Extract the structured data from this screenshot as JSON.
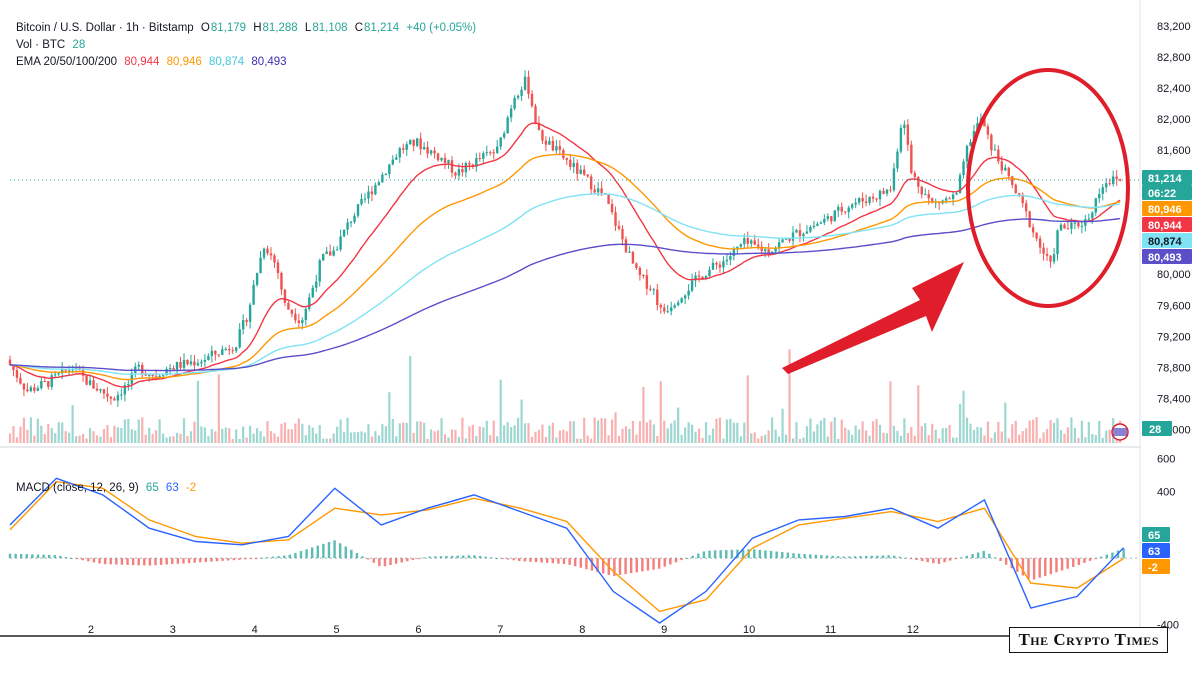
{
  "header": {
    "symbol": "Bitcoin / U.S. Dollar · 1h · Bitstamp",
    "open_label": "O",
    "open": "81,179",
    "high_label": "H",
    "high": "81,288",
    "low_label": "L",
    "low": "81,108",
    "close_label": "C",
    "close": "81,214",
    "change": "+40 (+0.05%)",
    "volume_label": "Vol · BTC",
    "volume": "28",
    "ema_label": "EMA 20/50/100/200",
    "ema20": "80,944",
    "ema50": "80,946",
    "ema100": "80,874",
    "ema200": "80,493",
    "macd_label": "MACD (close, 12, 26, 9)",
    "macd_hist": "65",
    "macd_line": "63",
    "macd_signal": "-2"
  },
  "colors": {
    "up": "#26a69a",
    "down": "#ef5350",
    "ema20": "#f23645",
    "ema50": "#ff9800",
    "ema100": "#7fe3f5",
    "ema200": "#5b4fc9",
    "macd": "#2962ff",
    "signal": "#ff9800",
    "annotation": "#e01e2b"
  },
  "chart_data": [
    {
      "type": "candlestick",
      "title": "Bitcoin / U.S. Dollar · 1h · Bitstamp",
      "ylim": [
        77800,
        83300
      ],
      "x_ticks": [
        "2",
        "3",
        "4",
        "5",
        "6",
        "7",
        "8",
        "9",
        "10",
        "11",
        "12"
      ],
      "y_ticks": [
        "83,200",
        "82,800",
        "82,400",
        "82,000",
        "81,600",
        "80,000",
        "79,600",
        "79,200",
        "78,800",
        "78,400",
        "78,000"
      ],
      "last_price": 81214,
      "countdown": "06:22",
      "price_path": [
        {
          "t": 0.0,
          "p": 78900
        },
        {
          "t": 0.25,
          "p": 78500
        },
        {
          "t": 0.5,
          "p": 78600
        },
        {
          "t": 0.8,
          "p": 78800
        },
        {
          "t": 1.0,
          "p": 78600
        },
        {
          "t": 1.3,
          "p": 78400
        },
        {
          "t": 1.5,
          "p": 78600
        },
        {
          "t": 1.6,
          "p": 78800
        },
        {
          "t": 1.8,
          "p": 78700
        },
        {
          "t": 2.0,
          "p": 78800
        },
        {
          "t": 2.4,
          "p": 78900
        },
        {
          "t": 2.6,
          "p": 79000
        },
        {
          "t": 2.8,
          "p": 79100
        },
        {
          "t": 2.95,
          "p": 79500
        },
        {
          "t": 3.05,
          "p": 80000
        },
        {
          "t": 3.15,
          "p": 80400
        },
        {
          "t": 3.3,
          "p": 80100
        },
        {
          "t": 3.4,
          "p": 79600
        },
        {
          "t": 3.6,
          "p": 79400
        },
        {
          "t": 3.7,
          "p": 79700
        },
        {
          "t": 3.85,
          "p": 80200
        },
        {
          "t": 4.0,
          "p": 80300
        },
        {
          "t": 4.2,
          "p": 80700
        },
        {
          "t": 4.4,
          "p": 81000
        },
        {
          "t": 4.6,
          "p": 81300
        },
        {
          "t": 4.8,
          "p": 81600
        },
        {
          "t": 5.0,
          "p": 81700
        },
        {
          "t": 5.3,
          "p": 81500
        },
        {
          "t": 5.5,
          "p": 81300
        },
        {
          "t": 5.8,
          "p": 81500
        },
        {
          "t": 6.0,
          "p": 81600
        },
        {
          "t": 6.2,
          "p": 82300
        },
        {
          "t": 6.35,
          "p": 82500
        },
        {
          "t": 6.5,
          "p": 81800
        },
        {
          "t": 6.7,
          "p": 81600
        },
        {
          "t": 7.0,
          "p": 81300
        },
        {
          "t": 7.3,
          "p": 81000
        },
        {
          "t": 7.5,
          "p": 80500
        },
        {
          "t": 7.7,
          "p": 80000
        },
        {
          "t": 7.9,
          "p": 79800
        },
        {
          "t": 8.0,
          "p": 79500
        },
        {
          "t": 8.2,
          "p": 79700
        },
        {
          "t": 8.5,
          "p": 80000
        },
        {
          "t": 8.8,
          "p": 80200
        },
        {
          "t": 9.0,
          "p": 80400
        },
        {
          "t": 9.3,
          "p": 80300
        },
        {
          "t": 9.6,
          "p": 80500
        },
        {
          "t": 10.0,
          "p": 80700
        },
        {
          "t": 10.3,
          "p": 80900
        },
        {
          "t": 10.6,
          "p": 81000
        },
        {
          "t": 10.8,
          "p": 81100
        },
        {
          "t": 10.95,
          "p": 82100
        },
        {
          "t": 11.05,
          "p": 81300
        },
        {
          "t": 11.3,
          "p": 80900
        },
        {
          "t": 11.6,
          "p": 81000
        },
        {
          "t": 11.75,
          "p": 81700
        },
        {
          "t": 11.9,
          "p": 82000
        },
        {
          "t": 12.0,
          "p": 81700
        },
        {
          "t": 12.2,
          "p": 81300
        },
        {
          "t": 12.4,
          "p": 80900
        },
        {
          "t": 12.6,
          "p": 80400
        },
        {
          "t": 12.75,
          "p": 80100
        },
        {
          "t": 12.85,
          "p": 80600
        },
        {
          "t": 13.0,
          "p": 80600
        },
        {
          "t": 13.2,
          "p": 80700
        },
        {
          "t": 13.4,
          "p": 81200
        },
        {
          "t": 13.6,
          "p": 81214
        }
      ],
      "series": [
        {
          "name": "EMA 20",
          "last": 80944
        },
        {
          "name": "EMA 50",
          "last": 80946
        },
        {
          "name": "EMA 100",
          "last": 80874
        },
        {
          "name": "EMA 200",
          "last": 80493
        }
      ]
    },
    {
      "type": "bar",
      "title": "Vol · BTC",
      "last": 28
    },
    {
      "type": "line",
      "title": "MACD (close, 12, 26, 9)",
      "ylim": [
        -420,
        620
      ],
      "y_ticks": [
        "600",
        "400",
        "-400"
      ],
      "series": [
        {
          "name": "MACD",
          "values": [
            200,
            480,
            380,
            180,
            100,
            80,
            130,
            420,
            200,
            300,
            380,
            280,
            180,
            -200,
            -390,
            -200,
            120,
            230,
            250,
            300,
            180,
            350,
            -300,
            -230,
            63
          ]
        },
        {
          "name": "Signal",
          "values": [
            170,
            460,
            420,
            230,
            130,
            90,
            110,
            300,
            260,
            290,
            360,
            300,
            220,
            -80,
            -320,
            -250,
            60,
            200,
            240,
            280,
            220,
            300,
            -150,
            -180,
            -2
          ]
        },
        {
          "name": "Histogram",
          "last": 65
        }
      ]
    }
  ],
  "watermark": "The Crypto Times"
}
